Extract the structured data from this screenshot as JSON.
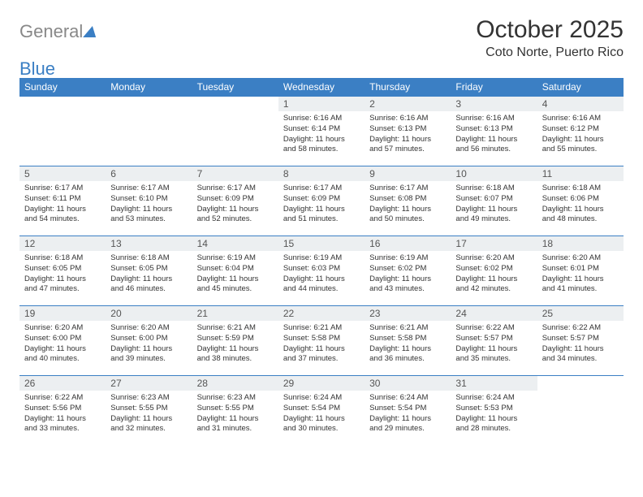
{
  "logo": {
    "text_gray": "General",
    "text_blue": "Blue"
  },
  "title": {
    "month": "October 2025",
    "location": "Coto Norte, Puerto Rico"
  },
  "colors": {
    "header_bg": "#3b7fc4",
    "header_text": "#ffffff",
    "daynum_bg": "#eceff1",
    "rule": "#3b7fc4",
    "text": "#333333",
    "page_bg": "#ffffff"
  },
  "day_names": [
    "Sunday",
    "Monday",
    "Tuesday",
    "Wednesday",
    "Thursday",
    "Friday",
    "Saturday"
  ],
  "weeks": [
    [
      null,
      null,
      null,
      {
        "n": "1",
        "sr": "6:16 AM",
        "ss": "6:14 PM",
        "dl": "11 hours and 58 minutes."
      },
      {
        "n": "2",
        "sr": "6:16 AM",
        "ss": "6:13 PM",
        "dl": "11 hours and 57 minutes."
      },
      {
        "n": "3",
        "sr": "6:16 AM",
        "ss": "6:13 PM",
        "dl": "11 hours and 56 minutes."
      },
      {
        "n": "4",
        "sr": "6:16 AM",
        "ss": "6:12 PM",
        "dl": "11 hours and 55 minutes."
      }
    ],
    [
      {
        "n": "5",
        "sr": "6:17 AM",
        "ss": "6:11 PM",
        "dl": "11 hours and 54 minutes."
      },
      {
        "n": "6",
        "sr": "6:17 AM",
        "ss": "6:10 PM",
        "dl": "11 hours and 53 minutes."
      },
      {
        "n": "7",
        "sr": "6:17 AM",
        "ss": "6:09 PM",
        "dl": "11 hours and 52 minutes."
      },
      {
        "n": "8",
        "sr": "6:17 AM",
        "ss": "6:09 PM",
        "dl": "11 hours and 51 minutes."
      },
      {
        "n": "9",
        "sr": "6:17 AM",
        "ss": "6:08 PM",
        "dl": "11 hours and 50 minutes."
      },
      {
        "n": "10",
        "sr": "6:18 AM",
        "ss": "6:07 PM",
        "dl": "11 hours and 49 minutes."
      },
      {
        "n": "11",
        "sr": "6:18 AM",
        "ss": "6:06 PM",
        "dl": "11 hours and 48 minutes."
      }
    ],
    [
      {
        "n": "12",
        "sr": "6:18 AM",
        "ss": "6:05 PM",
        "dl": "11 hours and 47 minutes."
      },
      {
        "n": "13",
        "sr": "6:18 AM",
        "ss": "6:05 PM",
        "dl": "11 hours and 46 minutes."
      },
      {
        "n": "14",
        "sr": "6:19 AM",
        "ss": "6:04 PM",
        "dl": "11 hours and 45 minutes."
      },
      {
        "n": "15",
        "sr": "6:19 AM",
        "ss": "6:03 PM",
        "dl": "11 hours and 44 minutes."
      },
      {
        "n": "16",
        "sr": "6:19 AM",
        "ss": "6:02 PM",
        "dl": "11 hours and 43 minutes."
      },
      {
        "n": "17",
        "sr": "6:20 AM",
        "ss": "6:02 PM",
        "dl": "11 hours and 42 minutes."
      },
      {
        "n": "18",
        "sr": "6:20 AM",
        "ss": "6:01 PM",
        "dl": "11 hours and 41 minutes."
      }
    ],
    [
      {
        "n": "19",
        "sr": "6:20 AM",
        "ss": "6:00 PM",
        "dl": "11 hours and 40 minutes."
      },
      {
        "n": "20",
        "sr": "6:20 AM",
        "ss": "6:00 PM",
        "dl": "11 hours and 39 minutes."
      },
      {
        "n": "21",
        "sr": "6:21 AM",
        "ss": "5:59 PM",
        "dl": "11 hours and 38 minutes."
      },
      {
        "n": "22",
        "sr": "6:21 AM",
        "ss": "5:58 PM",
        "dl": "11 hours and 37 minutes."
      },
      {
        "n": "23",
        "sr": "6:21 AM",
        "ss": "5:58 PM",
        "dl": "11 hours and 36 minutes."
      },
      {
        "n": "24",
        "sr": "6:22 AM",
        "ss": "5:57 PM",
        "dl": "11 hours and 35 minutes."
      },
      {
        "n": "25",
        "sr": "6:22 AM",
        "ss": "5:57 PM",
        "dl": "11 hours and 34 minutes."
      }
    ],
    [
      {
        "n": "26",
        "sr": "6:22 AM",
        "ss": "5:56 PM",
        "dl": "11 hours and 33 minutes."
      },
      {
        "n": "27",
        "sr": "6:23 AM",
        "ss": "5:55 PM",
        "dl": "11 hours and 32 minutes."
      },
      {
        "n": "28",
        "sr": "6:23 AM",
        "ss": "5:55 PM",
        "dl": "11 hours and 31 minutes."
      },
      {
        "n": "29",
        "sr": "6:24 AM",
        "ss": "5:54 PM",
        "dl": "11 hours and 30 minutes."
      },
      {
        "n": "30",
        "sr": "6:24 AM",
        "ss": "5:54 PM",
        "dl": "11 hours and 29 minutes."
      },
      {
        "n": "31",
        "sr": "6:24 AM",
        "ss": "5:53 PM",
        "dl": "11 hours and 28 minutes."
      },
      null
    ]
  ],
  "labels": {
    "sunrise": "Sunrise:",
    "sunset": "Sunset:",
    "daylight": "Daylight:"
  }
}
